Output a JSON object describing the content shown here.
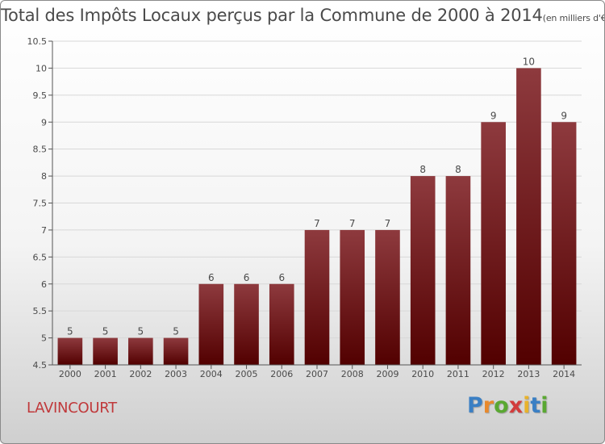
{
  "title": {
    "main": "Total des Impôts Locaux perçus par la Commune de 2000 à 2014",
    "unit": "(en milliers d'€)"
  },
  "commune": "LAVINCOURT",
  "logo": {
    "text": "Proxiti",
    "letters": [
      {
        "ch": "P",
        "color": "#3a7fc4"
      },
      {
        "ch": "r",
        "color": "#e8892c"
      },
      {
        "ch": "o",
        "color": "#5aa832"
      },
      {
        "ch": "x",
        "color": "#d23c3c"
      },
      {
        "ch": "i",
        "color": "#e8b22c"
      },
      {
        "ch": "t",
        "color": "#3a7fc4"
      },
      {
        "ch": "i",
        "color": "#5aa832"
      }
    ]
  },
  "colors": {
    "bar_top": "#8e3a3e",
    "bar_bottom": "#520000",
    "axis": "#555555",
    "grid": "#d8d8d8",
    "text": "#4a4a4a"
  },
  "chart_data": {
    "type": "bar",
    "title": "Total des Impôts Locaux perçus par la Commune de 2000 à 2014",
    "categories": [
      "2000",
      "2001",
      "2002",
      "2003",
      "2004",
      "2005",
      "2006",
      "2007",
      "2008",
      "2009",
      "2010",
      "2011",
      "2012",
      "2013",
      "2014"
    ],
    "values": [
      5,
      5,
      5,
      5,
      6,
      6,
      6,
      7,
      7,
      7,
      8,
      8,
      9,
      10,
      9
    ],
    "data_labels": [
      "5",
      "5",
      "5",
      "5",
      "6",
      "6",
      "6",
      "7",
      "7",
      "7",
      "8",
      "8",
      "9",
      "10",
      "9"
    ],
    "ylim": [
      4.5,
      10.5
    ],
    "yticks": [
      4.5,
      5,
      5.5,
      6,
      6.5,
      7,
      7.5,
      8,
      8.5,
      9,
      9.5,
      10,
      10.5
    ],
    "ytick_labels": [
      "4.5",
      "5",
      "5.5",
      "6",
      "6.5",
      "7",
      "7.5",
      "8",
      "8.5",
      "9",
      "9.5",
      "10",
      "10.5"
    ],
    "grid": true,
    "legend": "none"
  }
}
